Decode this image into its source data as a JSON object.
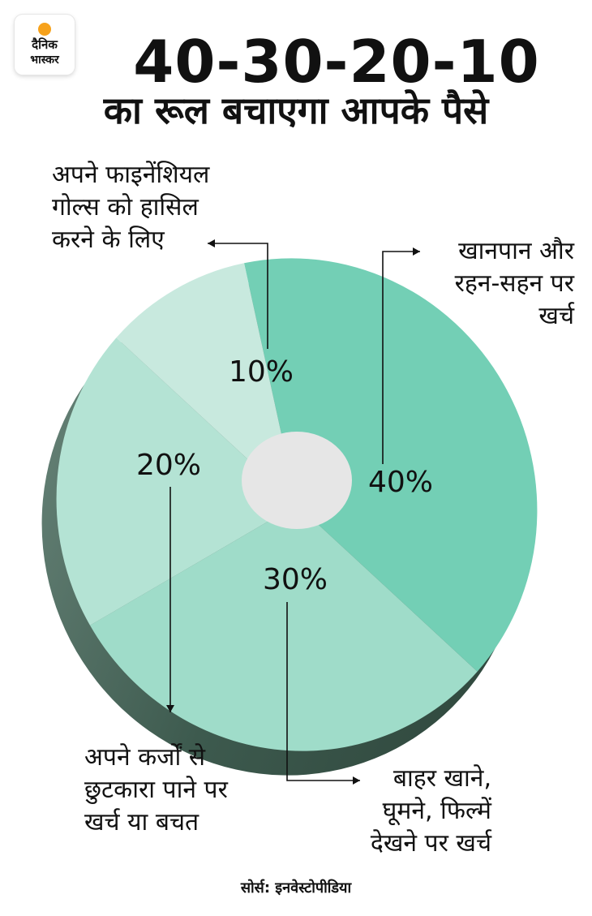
{
  "brand": {
    "line1": "दैनिक",
    "line2": "भास्कर",
    "accent": "#f7a21b"
  },
  "chart_data": {
    "type": "pie",
    "title": "40-30-20-10",
    "subtitle": "का रूल बचाएगा आपके पैसे",
    "slices": [
      {
        "label": "40%",
        "value": 40,
        "description": [
          "खानपान और",
          "रहन-सहन पर",
          "खर्च"
        ],
        "color": "#73cfb5"
      },
      {
        "label": "30%",
        "value": 30,
        "description": [
          "बाहर खाने,",
          "घूमने, फिल्में",
          "देखने पर खर्च"
        ],
        "color": "#9fdcc9"
      },
      {
        "label": "20%",
        "value": 20,
        "description": [
          "अपने कर्जों से",
          "छुटकारा पाने पर",
          "खर्च या बचत"
        ],
        "color": "#b4e3d4"
      },
      {
        "label": "10%",
        "value": 10,
        "description": [
          "अपने फाइनेंशियल",
          "गोल्स को हासिल",
          "करने के लिए"
        ],
        "color": "#c8e9de"
      }
    ],
    "center_color": "#e6e6e6",
    "shadow_color": "#3d5a4e"
  },
  "source": "सोर्स: इनवेस्टोपीडिया"
}
